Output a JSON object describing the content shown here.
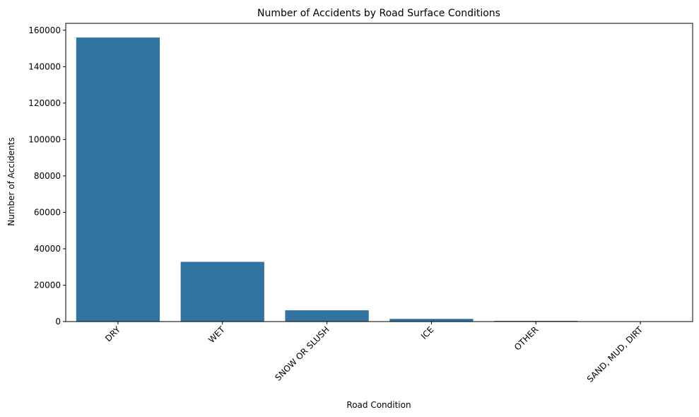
{
  "chart_data": {
    "type": "bar",
    "title": "Number of Accidents by Road Surface Conditions",
    "xlabel": "Road Condition",
    "ylabel": "Number of Accidents",
    "categories": [
      "DRY",
      "WET",
      "SNOW OR SLUSH",
      "ICE",
      "OTHER",
      "SAND, MUD, DIRT"
    ],
    "values": [
      156000,
      32800,
      6200,
      1500,
      400,
      100
    ],
    "ylim": [
      0,
      163800
    ],
    "yticks": [
      0,
      20000,
      40000,
      60000,
      80000,
      100000,
      120000,
      140000,
      160000
    ],
    "ytick_labels": [
      "0",
      "20000",
      "40000",
      "60000",
      "80000",
      "100000",
      "120000",
      "140000",
      "160000"
    ],
    "bar_color": "#3274a1",
    "grid": false,
    "legend": "none"
  }
}
